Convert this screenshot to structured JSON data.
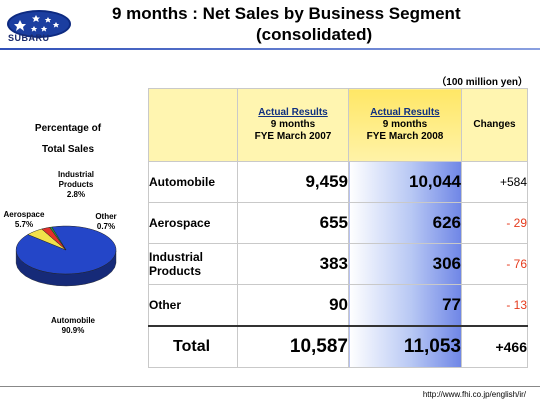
{
  "brand": {
    "name": "SUBARU"
  },
  "title": {
    "line1": "9 months : Net Sales by Business Segment",
    "line2": "(consolidated)"
  },
  "unit": "（100 million yen）",
  "pie_section": {
    "title_line1": "Percentage of",
    "title_line2": "Total Sales",
    "labels": {
      "industrial": "Industrial",
      "industrial2": "Products",
      "industrial_pct": "2.8%",
      "aerospace": "Aerospace",
      "aerospace_pct": "5.7%",
      "other": "Other",
      "other_pct": "0.7%",
      "automobile": "Automobile",
      "automobile_pct": "90.9%"
    },
    "colors": {
      "automobile": "#2446c8",
      "aerospace": "#f1e04a",
      "industrial": "#e12f2a",
      "other": "#2a9a3c"
    }
  },
  "chart_data": {
    "type": "pie",
    "title": "Percentage of Total Sales",
    "categories": [
      "Automobile",
      "Aerospace",
      "Industrial Products",
      "Other"
    ],
    "values": [
      90.9,
      5.7,
      2.8,
      0.7
    ]
  },
  "table": {
    "headers": {
      "c2_line1": "Actual Results",
      "c2_line2": "9 months",
      "c2_line3": "FYE March 2007",
      "c3_line1": "Actual Results",
      "c3_line2": "9 months",
      "c3_line3": "FYE March 2008",
      "c4": "Changes"
    },
    "rows": [
      {
        "label": "Automobile",
        "label2": "",
        "fy2007": "9,459",
        "fy2008": "10,044",
        "change": "+584"
      },
      {
        "label": "Aerospace",
        "label2": "",
        "fy2007": "655",
        "fy2008": "626",
        "change": "- 29"
      },
      {
        "label": "Industrial",
        "label2": "Products",
        "fy2007": "383",
        "fy2008": "306",
        "change": "- 76"
      },
      {
        "label": "Other",
        "label2": "",
        "fy2007": "90",
        "fy2008": "77",
        "change": "- 13"
      }
    ],
    "total": {
      "label": "Total",
      "fy2007": "10,587",
      "fy2008": "11,053",
      "change": "+466"
    }
  },
  "footer": {
    "url": "http://www.fhi.co.jp/english/ir/"
  }
}
